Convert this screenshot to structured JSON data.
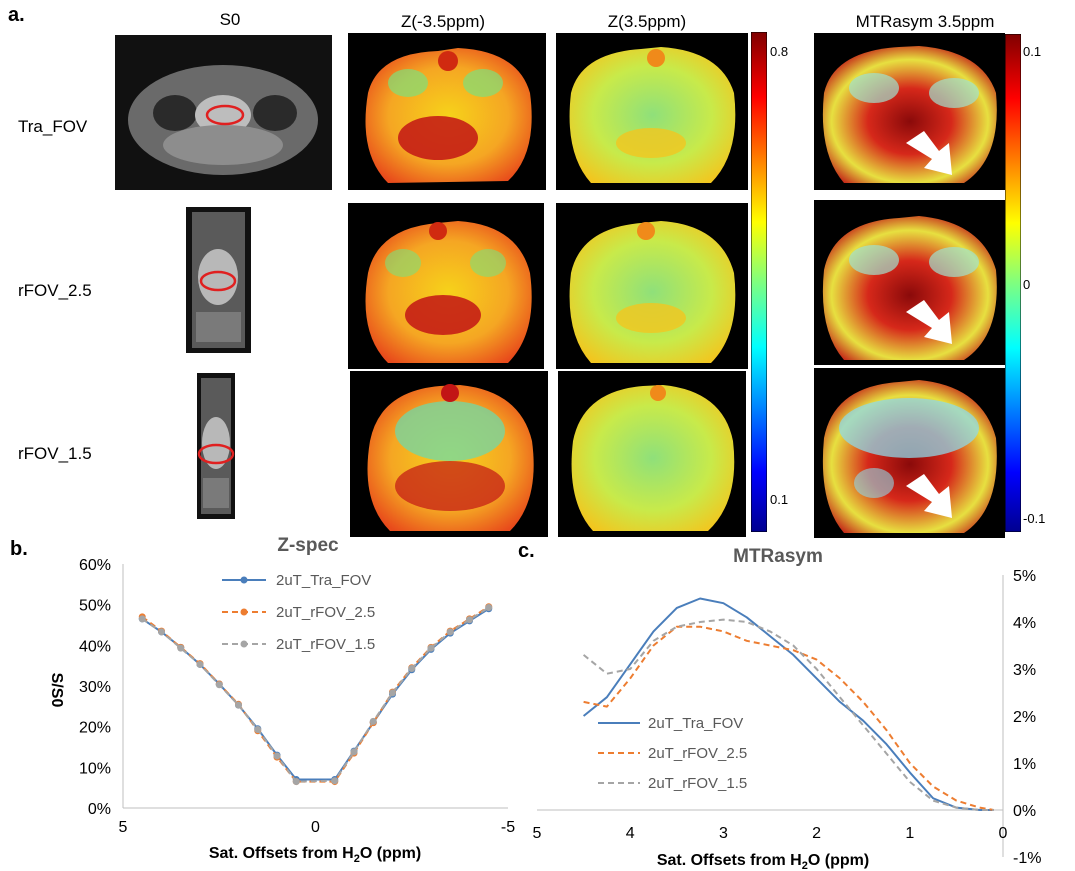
{
  "panel_labels": {
    "a": "a.",
    "b": "b.",
    "c": "c."
  },
  "columns": [
    "S0",
    "Z(-3.5ppm)",
    "Z(3.5ppm)",
    "MTRasym  3.5ppm"
  ],
  "rows": [
    "Tra_FOV",
    "rFOV_2.5",
    "rFOV_1.5"
  ],
  "colorbar_z": {
    "max_label": "0.8",
    "min_label": "0.1"
  },
  "colorbar_mtr": {
    "max_label": "0.1",
    "mid_label": "0",
    "min_label": "-0.1"
  },
  "colors": {
    "tra": "#4a7ebb",
    "rfov25": "#ed7d31",
    "rfov15": "#a5a5a5",
    "roi": "#e02020"
  },
  "chart_data": [
    {
      "type": "line",
      "title": "Z-spec",
      "xlabel_main": "Sat. Offsets from H",
      "xlabel_sub": "2",
      "xlabel_tail": "O  (ppm)",
      "ylabel": "S/S0",
      "xlim": [
        5,
        -5
      ],
      "ylim": [
        0,
        60
      ],
      "x_ticks": [
        "5",
        "0",
        "-5"
      ],
      "y_ticks": [
        "0%",
        "10%",
        "20%",
        "30%",
        "40%",
        "50%",
        "60%"
      ],
      "x": [
        4.5,
        4.0,
        3.5,
        3.0,
        2.5,
        2.0,
        1.5,
        1.0,
        0.5,
        -0.5,
        -1.0,
        -1.5,
        -2.0,
        -2.5,
        -3.0,
        -3.5,
        -4.0,
        -4.5
      ],
      "series": [
        {
          "name": "2uT_Tra_FOV",
          "values": [
            46.5,
            43.3,
            39.5,
            35.3,
            30.5,
            25.3,
            19.5,
            13.0,
            7.0,
            7.0,
            14.0,
            21.0,
            28.0,
            34.0,
            39.0,
            43.0,
            46.0,
            49.0
          ]
        },
        {
          "name": "2uT_rFOV_2.5",
          "values": [
            47.0,
            43.5,
            39.5,
            35.5,
            30.5,
            25.5,
            19.0,
            12.5,
            6.5,
            6.5,
            13.5,
            21.0,
            28.5,
            34.5,
            39.5,
            43.5,
            46.5,
            49.5
          ]
        },
        {
          "name": "2uT_rFOV_1.5",
          "values": [
            46.5,
            43.3,
            39.3,
            35.3,
            30.3,
            25.3,
            19.3,
            12.8,
            6.5,
            6.7,
            13.8,
            21.3,
            28.3,
            34.3,
            39.3,
            43.3,
            46.3,
            49.3
          ]
        }
      ]
    },
    {
      "type": "line",
      "title": "MTRasym",
      "xlabel_main": "Sat. Offsets from H",
      "xlabel_sub": "2",
      "xlabel_tail": "O  (ppm)",
      "xlim": [
        5,
        0
      ],
      "ylim": [
        -1,
        5
      ],
      "x_ticks": [
        "5",
        "4",
        "3",
        "2",
        "1",
        "0"
      ],
      "y_ticks": [
        "-1%",
        "0%",
        "1%",
        "2%",
        "3%",
        "4%",
        "5%"
      ],
      "x": [
        4.5,
        4.25,
        4.0,
        3.75,
        3.5,
        3.25,
        3.0,
        2.75,
        2.5,
        2.25,
        2.0,
        1.75,
        1.5,
        1.25,
        1.0,
        0.75,
        0.5,
        0.25,
        0.1
      ],
      "series": [
        {
          "name": "2uT_Tra_FOV",
          "values": [
            2.0,
            2.4,
            3.1,
            3.8,
            4.3,
            4.5,
            4.4,
            4.1,
            3.7,
            3.3,
            2.8,
            2.3,
            1.9,
            1.4,
            0.8,
            0.25,
            0.05,
            0.0,
            0.0
          ]
        },
        {
          "name": "2uT_rFOV_2.5",
          "values": [
            2.3,
            2.2,
            2.8,
            3.5,
            3.9,
            3.9,
            3.8,
            3.6,
            3.5,
            3.4,
            3.2,
            2.8,
            2.3,
            1.7,
            1.0,
            0.5,
            0.2,
            0.05,
            0.0
          ]
        },
        {
          "name": "2uT_rFOV_1.5",
          "values": [
            3.3,
            2.9,
            3.0,
            3.6,
            3.9,
            4.0,
            4.05,
            4.0,
            3.8,
            3.5,
            3.0,
            2.4,
            1.8,
            1.2,
            0.6,
            0.2,
            0.05,
            0.0,
            0.0
          ]
        }
      ]
    }
  ]
}
